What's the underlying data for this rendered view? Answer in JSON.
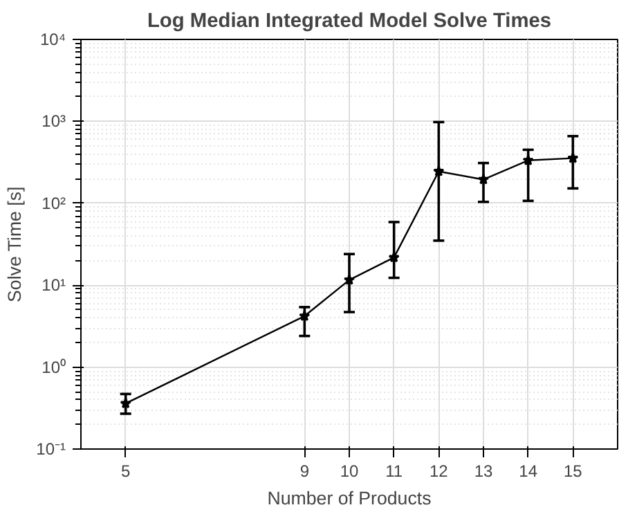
{
  "chart_data": {
    "type": "line",
    "title": "Log Median Integrated Model Solve Times",
    "xlabel": "Number of Products",
    "ylabel": "Solve Time [s]",
    "x": [
      5,
      9,
      10,
      11,
      12,
      13,
      14,
      15
    ],
    "series": [
      {
        "color": "#000000",
        "values": [
          0.36,
          4.2,
          11.6,
          21.8,
          245,
          195,
          334,
          355
        ],
        "errors": [
          [
            0.27,
            0.47
          ],
          [
            2.4,
            5.4
          ],
          [
            4.7,
            24
          ],
          [
            12.3,
            59
          ],
          [
            35,
            980
          ],
          [
            104,
            310
          ],
          [
            107,
            450
          ],
          [
            152,
            660
          ]
        ]
      }
    ],
    "xlim": [
      4,
      16
    ],
    "xticks": [
      5,
      9,
      10,
      11,
      12,
      13,
      14,
      15
    ],
    "ylim": [
      0.1,
      10000
    ],
    "yticks": [
      {
        "value": 0.1,
        "label": "10⁻¹"
      },
      {
        "value": 1,
        "label": "10⁰"
      },
      {
        "value": 10,
        "label": "10¹"
      },
      {
        "value": 100,
        "label": "10²"
      },
      {
        "value": 1000,
        "label": "10³"
      },
      {
        "value": 10000,
        "label": "10⁴"
      }
    ],
    "log": "y",
    "grid": true,
    "marker": "star",
    "line_style": "solid"
  }
}
